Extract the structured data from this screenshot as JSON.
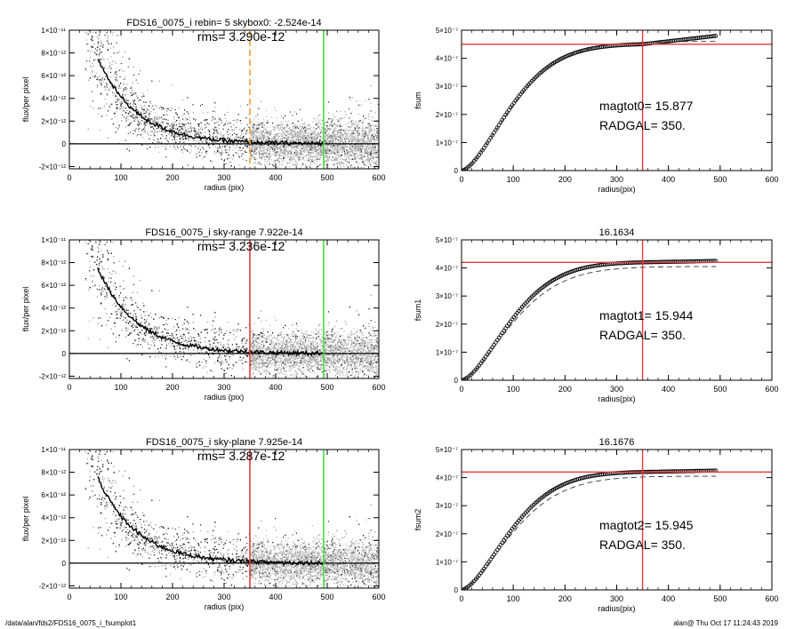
{
  "footer": {
    "left": "/data/alan/fds2/FDS16_0075_i_fsumplot1",
    "right": "alan@  Thu Oct 17 11:24:43 2019"
  },
  "colors": {
    "scatter": "#9a9a9a",
    "scatter_dark": "#1a1a1a",
    "profile": "#000000",
    "orange_marker": "#f0a030",
    "red_marker": "#e53a3a",
    "green_marker": "#44dd44",
    "dashed_model": "#333333"
  },
  "chart_data": [
    {
      "type": "scatter",
      "panel": "profile-top",
      "title": "FDS16_0075_i rebin= 5    skybox0: -2.524e-14",
      "annotation": "rms= 3.290e-12",
      "xlabel": "radius (pix)",
      "ylabel": "flux/per pixel",
      "xlim": [
        0,
        600
      ],
      "ylim": [
        -2.2e-12,
        1e-11
      ],
      "xticks": [
        0,
        100,
        200,
        300,
        400,
        500,
        600
      ],
      "xtick_labels": [
        "0",
        "100",
        "200",
        "300",
        "400",
        "500",
        "600"
      ],
      "yticks": [
        -2e-12,
        0,
        2e-12,
        4e-12,
        6e-12,
        8e-12,
        1e-11
      ],
      "ytick_labels": [
        "-2×10⁻¹²",
        "0",
        "2×10⁻¹²",
        "4×10⁻¹²",
        "6×10⁻¹²",
        "8×10⁻¹²",
        "1×10⁻¹¹"
      ],
      "profile_scale_x": 75,
      "profile_amplitude": 9.2e-12,
      "markers": [
        {
          "x": 350,
          "color": "orange",
          "style": "dashed"
        },
        {
          "x": 493,
          "color": "green",
          "style": "solid"
        }
      ],
      "grid": false
    },
    {
      "type": "line",
      "panel": "growth-top",
      "title": "",
      "annotation_lines": [
        "magtot0=  15.877",
        "RADGAL=    350."
      ],
      "xlabel": "radius(pix)",
      "ylabel": "fsum",
      "xlim": [
        0,
        600
      ],
      "ylim": [
        0,
        5e-07
      ],
      "xticks": [
        0,
        100,
        200,
        300,
        400,
        500,
        600
      ],
      "xtick_labels": [
        "0",
        "100",
        "200",
        "300",
        "400",
        "500",
        "600"
      ],
      "yticks": [
        0,
        1e-07,
        2e-07,
        3e-07,
        4e-07,
        5e-07
      ],
      "ytick_labels": [
        "0",
        "1×10⁻⁷",
        "2×10⁻⁷",
        "3×10⁻⁷",
        "4×10⁻⁷",
        "5×10⁻⁷"
      ],
      "data_endpoint": [
        493,
        4.8e-07
      ],
      "data_at_350": 4.5e-07,
      "model_asymptote": 4.6e-07,
      "hline": 4.5e-07,
      "vline": 350,
      "grid": false
    },
    {
      "type": "scatter",
      "panel": "profile-middle",
      "title": "FDS16_0075_i sky-range  7.922e-14",
      "annotation": "rms= 3.236e-12",
      "xlabel": "radius (pix)",
      "ylabel": "flux/per pixel",
      "xlim": [
        0,
        600
      ],
      "ylim": [
        -2.2e-12,
        1e-11
      ],
      "xticks": [
        0,
        100,
        200,
        300,
        400,
        500,
        600
      ],
      "xtick_labels": [
        "0",
        "100",
        "200",
        "300",
        "400",
        "500",
        "600"
      ],
      "yticks": [
        -2e-12,
        0,
        2e-12,
        4e-12,
        6e-12,
        8e-12,
        1e-11
      ],
      "ytick_labels": [
        "-2×10⁻¹²",
        "0",
        "2×10⁻¹²",
        "4×10⁻¹²",
        "6×10⁻¹²",
        "8×10⁻¹²",
        "1×10⁻¹¹"
      ],
      "profile_scale_x": 75,
      "profile_amplitude": 9.2e-12,
      "markers": [
        {
          "x": 350,
          "color": "red",
          "style": "solid"
        },
        {
          "x": 493,
          "color": "green",
          "style": "solid"
        }
      ],
      "grid": false
    },
    {
      "type": "line",
      "panel": "growth-middle",
      "title": "16.1634",
      "annotation_lines": [
        "magtot1=  15.944",
        "RADGAL=    350."
      ],
      "xlabel": "radius(pix)",
      "ylabel": "fsum1",
      "xlim": [
        0,
        600
      ],
      "ylim": [
        0,
        5e-07
      ],
      "xticks": [
        0,
        100,
        200,
        300,
        400,
        500,
        600
      ],
      "xtick_labels": [
        "0",
        "100",
        "200",
        "300",
        "400",
        "500",
        "600"
      ],
      "yticks": [
        0,
        1e-07,
        2e-07,
        3e-07,
        4e-07,
        5e-07
      ],
      "ytick_labels": [
        "0",
        "1×10⁻⁷",
        "2×10⁻⁷",
        "3×10⁻⁷",
        "4×10⁻⁷",
        "5×10⁻⁷"
      ],
      "data_endpoint": [
        493,
        4.25e-07
      ],
      "data_at_350": 4.2e-07,
      "model_asymptote": 4.05e-07,
      "hline": 4.2e-07,
      "vline": 350,
      "grid": false
    },
    {
      "type": "scatter",
      "panel": "profile-bottom",
      "title": "FDS16_0075_i sky-plane  7.925e-14",
      "annotation": "rms= 3.287e-12",
      "xlabel": "radius (pix)",
      "ylabel": "flux/per pixel",
      "xlim": [
        0,
        600
      ],
      "ylim": [
        -2.2e-12,
        1e-11
      ],
      "xticks": [
        0,
        100,
        200,
        300,
        400,
        500,
        600
      ],
      "xtick_labels": [
        "0",
        "100",
        "200",
        "300",
        "400",
        "500",
        "600"
      ],
      "yticks": [
        -2e-12,
        0,
        2e-12,
        4e-12,
        6e-12,
        8e-12,
        1e-11
      ],
      "ytick_labels": [
        "-2×10⁻¹²",
        "0",
        "2×10⁻¹²",
        "4×10⁻¹²",
        "6×10⁻¹²",
        "8×10⁻¹²",
        "1×10⁻¹¹"
      ],
      "profile_scale_x": 75,
      "profile_amplitude": 9.2e-12,
      "markers": [
        {
          "x": 350,
          "color": "red",
          "style": "solid"
        },
        {
          "x": 493,
          "color": "green",
          "style": "solid"
        }
      ],
      "grid": false
    },
    {
      "type": "line",
      "panel": "growth-bottom",
      "title": "16.1676",
      "annotation_lines": [
        "magtot2=  15.945",
        "RADGAL=    350."
      ],
      "xlabel": "radius(pix)",
      "ylabel": "fsum2",
      "xlim": [
        0,
        600
      ],
      "ylim": [
        0,
        5e-07
      ],
      "xticks": [
        0,
        100,
        200,
        300,
        400,
        500,
        600
      ],
      "xtick_labels": [
        "0",
        "100",
        "200",
        "300",
        "400",
        "500",
        "600"
      ],
      "yticks": [
        0,
        1e-07,
        2e-07,
        3e-07,
        4e-07,
        5e-07
      ],
      "ytick_labels": [
        "0",
        "1×10⁻⁷",
        "2×10⁻⁷",
        "3×10⁻⁷",
        "4×10⁻⁷",
        "5×10⁻⁷"
      ],
      "data_endpoint": [
        493,
        4.25e-07
      ],
      "data_at_350": 4.2e-07,
      "model_asymptote": 4.05e-07,
      "hline": 4.2e-07,
      "vline": 350,
      "grid": false
    }
  ]
}
